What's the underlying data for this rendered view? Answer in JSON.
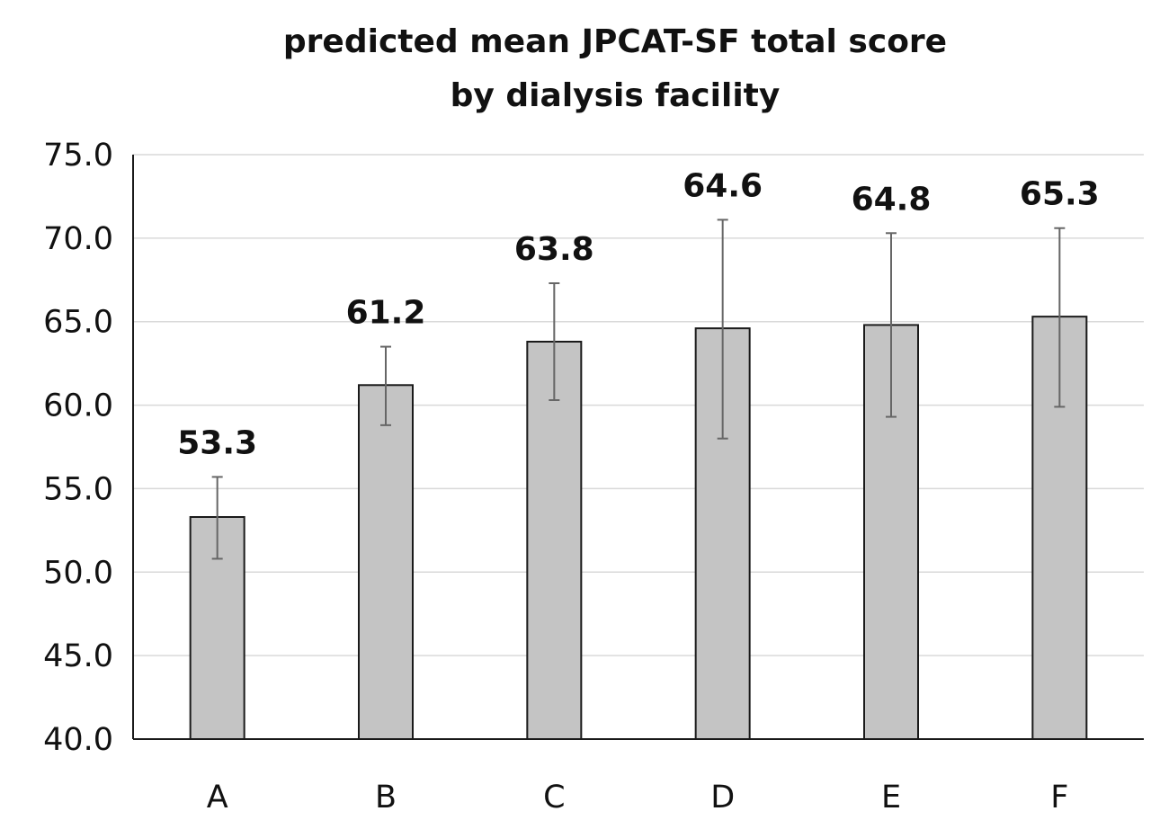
{
  "chart_data": {
    "type": "bar",
    "title_lines": [
      "predicted mean JPCAT-SF total score",
      "by dialysis facility"
    ],
    "xlabel": "",
    "ylabel": "",
    "categories": [
      "A",
      "B",
      "C",
      "D",
      "E",
      "F"
    ],
    "values": [
      53.3,
      61.2,
      63.8,
      64.6,
      64.8,
      65.3
    ],
    "value_labels": [
      "53.3",
      "61.2",
      "63.8",
      "64.6",
      "64.8",
      "65.3"
    ],
    "error_low": [
      50.8,
      58.8,
      60.3,
      58.0,
      59.3,
      59.9
    ],
    "error_high": [
      55.7,
      63.5,
      67.3,
      71.1,
      70.3,
      70.6
    ],
    "ylim": [
      40.0,
      75.0
    ],
    "y_ticks": [
      "40.0",
      "45.0",
      "50.0",
      "55.0",
      "60.0",
      "65.0",
      "70.0",
      "75.0"
    ],
    "grid": true,
    "legend": "none",
    "colors": {
      "bar_fill": "#c4c4c4",
      "bar_stroke": "#1a1a1a",
      "error_bar": "#666666",
      "gridline": "#d9d9d9",
      "axis": "#1a1a1a"
    }
  }
}
